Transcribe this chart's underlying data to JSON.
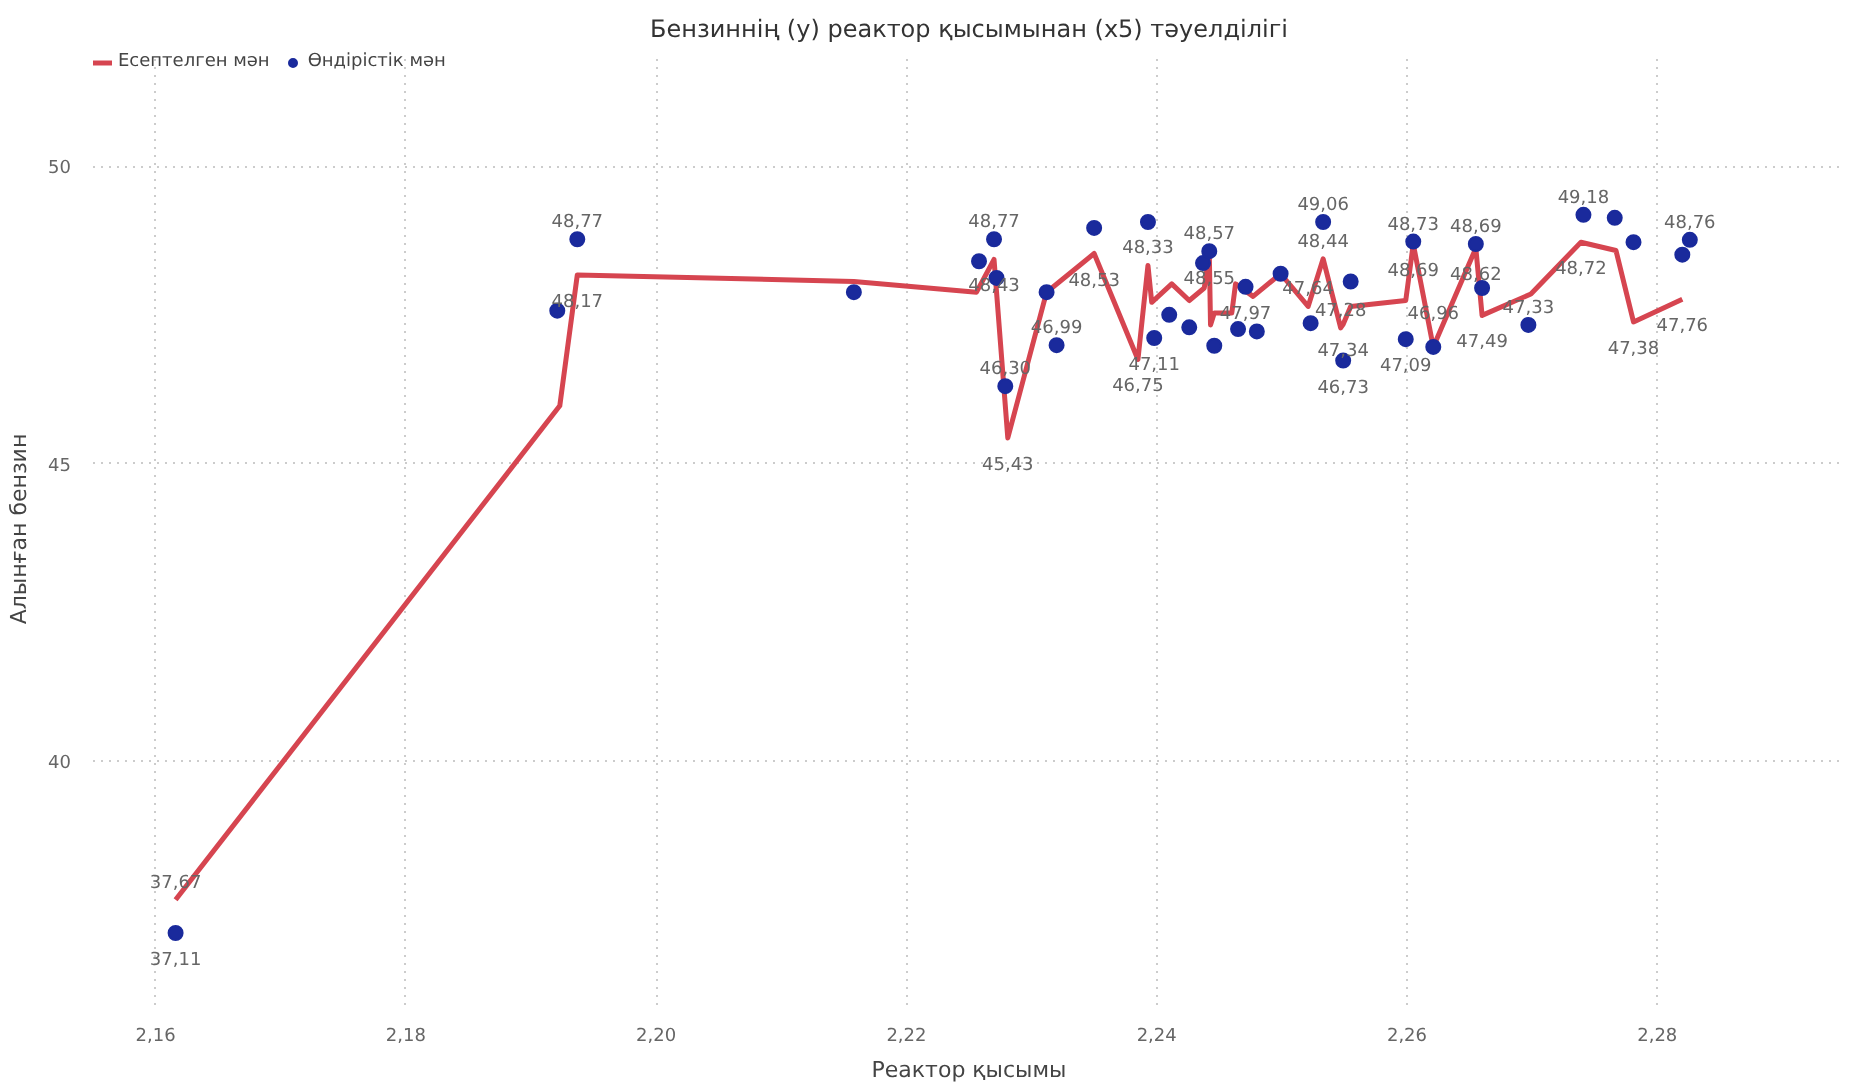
{
  "chart_data": {
    "type": "line",
    "title": "Бензиннің (y) реактор қысымынан (x5) тәуелділігі",
    "xlabel": "Реактор қысымы",
    "ylabel": "Алынған бензин",
    "xlim": [
      2.155,
      2.295
    ],
    "ylim": [
      35.9,
      51.9
    ],
    "xticks": [
      {
        "value": 2.16,
        "label": "2,16"
      },
      {
        "value": 2.18,
        "label": "2,18"
      },
      {
        "value": 2.2,
        "label": "2,20"
      },
      {
        "value": 2.22,
        "label": "2,22"
      },
      {
        "value": 2.24,
        "label": "2,24"
      },
      {
        "value": 2.26,
        "label": "2,26"
      },
      {
        "value": 2.28,
        "label": "2,28"
      }
    ],
    "yticks": [
      40,
      45,
      50
    ],
    "grid": true,
    "legend": "top left",
    "series": [
      {
        "name": "Есептелген мән",
        "color": "#d64550",
        "marker": "none",
        "line_style": "solid",
        "x": [
          2.1616,
          2.1923,
          2.1937,
          2.2158,
          2.2256,
          2.227,
          2.2281,
          2.2312,
          2.235,
          2.2385,
          2.2393,
          2.2396,
          2.2412,
          2.2426,
          2.2438,
          2.2442,
          2.2443,
          2.2446,
          2.246,
          2.2463,
          2.2477,
          2.2499,
          2.2521,
          2.2533,
          2.2547,
          2.2549,
          2.2555,
          2.2599,
          2.2605,
          2.2621,
          2.2655,
          2.266,
          2.2699,
          2.2739,
          2.2767,
          2.2781,
          2.282
        ],
        "values": [
          37.67,
          45.97,
          48.17,
          48.06,
          47.88,
          48.43,
          45.43,
          47.88,
          48.53,
          46.75,
          48.33,
          47.71,
          48.02,
          47.74,
          47.95,
          48.55,
          47.33,
          47.53,
          47.53,
          48.02,
          47.81,
          48.19,
          47.64,
          48.44,
          47.28,
          47.34,
          47.64,
          47.74,
          48.69,
          46.96,
          48.62,
          47.49,
          47.85,
          48.72,
          48.58,
          47.38,
          47.76
        ],
        "value_labels": [
          "37,67",
          null,
          "48,17",
          null,
          null,
          "48,43",
          "45,43",
          null,
          "48,53",
          "46,75",
          "48,33",
          null,
          null,
          null,
          null,
          "48,55",
          null,
          null,
          null,
          null,
          null,
          null,
          "47,64",
          "48,44",
          "47,28",
          "47,34",
          null,
          null,
          "48,69",
          null,
          "48,62",
          "47,49",
          null,
          "48,72",
          null,
          "47,38",
          "47,76"
        ]
      },
      {
        "name": "Өндірістік мән",
        "type": "scatter",
        "color": "#1a2a9c",
        "marker": "circle",
        "x": [
          2.1616,
          2.1921,
          2.1937,
          2.2158,
          2.2258,
          2.227,
          2.2272,
          2.2279,
          2.2312,
          2.232,
          2.235,
          2.2393,
          2.2398,
          2.241,
          2.2426,
          2.2437,
          2.2442,
          2.2446,
          2.2465,
          2.2471,
          2.248,
          2.2499,
          2.2523,
          2.2533,
          2.2549,
          2.2555,
          2.2599,
          2.2605,
          2.2621,
          2.2655,
          2.266,
          2.2697,
          2.2741,
          2.2766,
          2.2781,
          2.282,
          2.2826
        ],
        "values": [
          37.11,
          47.57,
          48.77,
          47.88,
          48.4,
          48.77,
          48.12,
          46.3,
          47.88,
          46.99,
          48.96,
          49.06,
          47.11,
          47.5,
          47.29,
          48.37,
          48.57,
          46.98,
          47.26,
          47.97,
          47.22,
          48.19,
          47.36,
          49.06,
          46.73,
          48.06,
          47.09,
          48.73,
          46.96,
          48.69,
          47.95,
          47.33,
          49.18,
          49.13,
          48.72,
          48.51,
          48.76
        ],
        "value_labels": [
          "37,11",
          null,
          "48,77",
          null,
          null,
          "48,77",
          null,
          "46,30",
          null,
          "46,99",
          null,
          null,
          "47,11",
          null,
          null,
          null,
          "48,57",
          null,
          null,
          "47,97",
          null,
          null,
          null,
          "49,06",
          "46,73",
          null,
          "47,09",
          "48,73",
          "46,96",
          "48,69",
          null,
          "47,33",
          "49,18",
          null,
          null,
          null,
          "48,76"
        ]
      }
    ]
  }
}
